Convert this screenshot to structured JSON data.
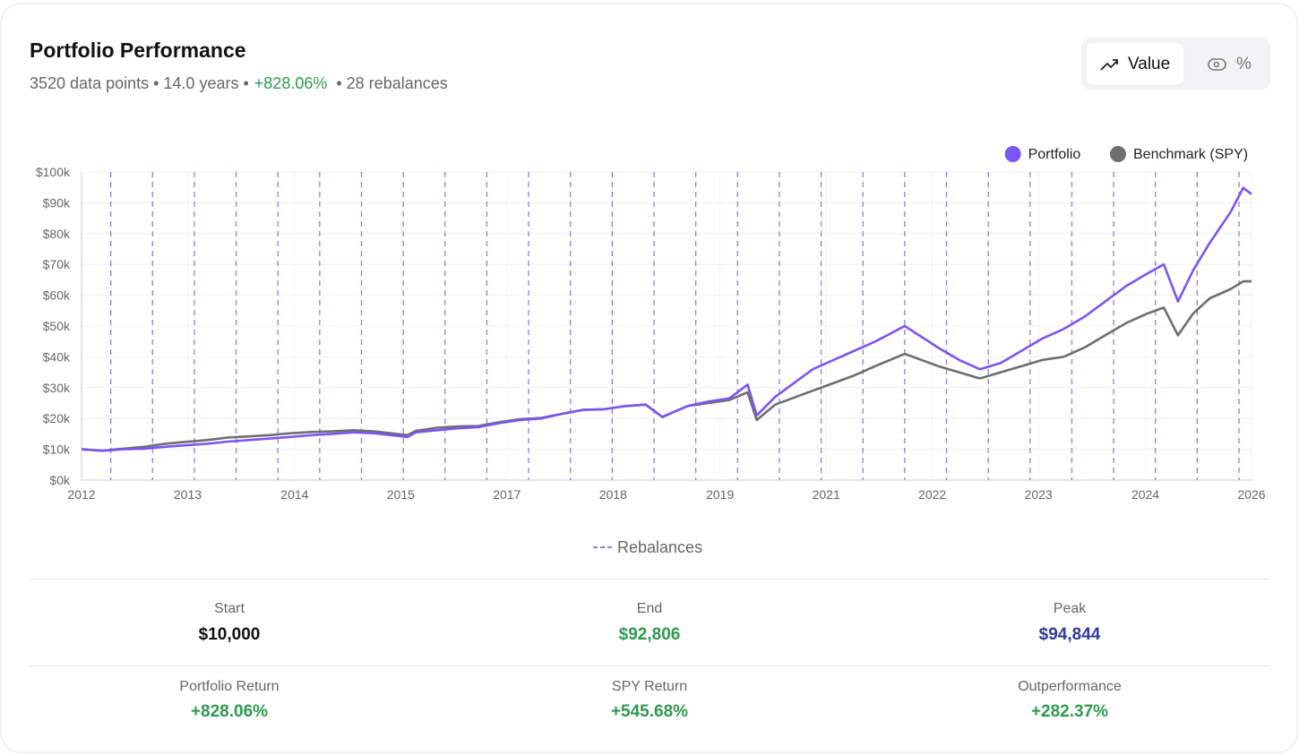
{
  "header": {
    "title": "Portfolio Performance",
    "subtitle": [
      "3520 data points • 14.0 years •",
      "+828.06%",
      "• 28 rebalances"
    ]
  },
  "toggle": {
    "options": [
      "Value",
      "%"
    ],
    "selected": 0
  },
  "chart_data": {
    "type": "line",
    "legend": "top-right",
    "grid": true,
    "x": [
      2012.0,
      2012.25,
      2012.5,
      2012.75,
      2013.0,
      2013.25,
      2013.5,
      2013.75,
      2014.0,
      2014.25,
      2014.5,
      2014.75,
      2015.0,
      2015.25,
      2015.5,
      2015.9,
      2016.0,
      2016.25,
      2016.5,
      2016.75,
      2017.0,
      2017.25,
      2017.5,
      2017.75,
      2018.0,
      2018.25,
      2018.5,
      2018.75,
      2018.95,
      2019.25,
      2019.5,
      2019.75,
      2019.97,
      2020.08,
      2020.3,
      2020.5,
      2020.75,
      2021.0,
      2021.25,
      2021.5,
      2021.85,
      2022.25,
      2022.5,
      2022.75,
      2023.0,
      2023.25,
      2023.5,
      2023.75,
      2024.0,
      2024.25,
      2024.5,
      2024.75,
      2024.95,
      2025.12,
      2025.3,
      2025.5,
      2025.75,
      2025.9,
      2026.0
    ],
    "series": [
      {
        "name": "Portfolio",
        "color": "#7b55f4",
        "values": [
          10000,
          9500,
          10000,
          10200,
          10800,
          11300,
          11800,
          12500,
          13000,
          13500,
          14000,
          14600,
          15000,
          15500,
          15200,
          14000,
          15500,
          16200,
          16800,
          17200,
          18500,
          19500,
          20000,
          21500,
          22800,
          23000,
          24000,
          24500,
          20500,
          24000,
          25500,
          26500,
          31000,
          21000,
          27000,
          31000,
          36000,
          39000,
          42000,
          45000,
          50000,
          43000,
          39000,
          36000,
          38000,
          42000,
          46000,
          49000,
          53000,
          58000,
          63000,
          67000,
          70000,
          58000,
          68000,
          77000,
          87000,
          94844,
          92806
        ]
      },
      {
        "name": "Benchmark (SPY)",
        "color": "#6e6e6e",
        "values": [
          10000,
          9600,
          10200,
          10800,
          11800,
          12400,
          13000,
          13800,
          14200,
          14600,
          15200,
          15600,
          15800,
          16200,
          15800,
          14600,
          16000,
          17000,
          17400,
          17600,
          18800,
          19800,
          20200,
          21500,
          22800,
          23000,
          24000,
          24500,
          20500,
          24000,
          25000,
          26000,
          28500,
          19500,
          24500,
          26500,
          29000,
          31500,
          34000,
          37000,
          41000,
          37000,
          35000,
          33000,
          35000,
          37000,
          39000,
          40000,
          43000,
          47000,
          51000,
          54000,
          56000,
          47000,
          54000,
          59000,
          62000,
          64500,
          64500
        ]
      }
    ],
    "xlim": [
      2012,
      2026
    ],
    "xticks": [
      {
        "value": 2012,
        "label": "2012"
      },
      {
        "value": 2013.27,
        "label": "2013"
      },
      {
        "value": 2014.55,
        "label": "2014"
      },
      {
        "value": 2015.82,
        "label": "2015"
      },
      {
        "value": 2017.09,
        "label": "2017"
      },
      {
        "value": 2018.36,
        "label": "2018"
      },
      {
        "value": 2019.64,
        "label": "2019"
      },
      {
        "value": 2020.91,
        "label": "2021"
      },
      {
        "value": 2022.18,
        "label": "2022"
      },
      {
        "value": 2023.45,
        "label": "2023"
      },
      {
        "value": 2024.73,
        "label": "2024"
      },
      {
        "value": 2026,
        "label": "2026"
      }
    ],
    "ylim": [
      0,
      100000
    ],
    "yticks": [
      {
        "value": 0,
        "label": "$0k"
      },
      {
        "value": 10000,
        "label": "$10k"
      },
      {
        "value": 20000,
        "label": "$20k"
      },
      {
        "value": 30000,
        "label": "$30k"
      },
      {
        "value": 40000,
        "label": "$40k"
      },
      {
        "value": 50000,
        "label": "$50k"
      },
      {
        "value": 60000,
        "label": "$60k"
      },
      {
        "value": 70000,
        "label": "$70k"
      },
      {
        "value": 80000,
        "label": "$80k"
      },
      {
        "value": 90000,
        "label": "$90k"
      },
      {
        "value": 100000,
        "label": "$100k"
      }
    ],
    "rebalances": [
      2012.35,
      2012.85,
      2013.35,
      2013.85,
      2014.35,
      2014.85,
      2015.35,
      2015.85,
      2016.35,
      2016.85,
      2017.35,
      2017.85,
      2018.35,
      2018.85,
      2019.35,
      2019.85,
      2020.35,
      2020.85,
      2021.35,
      2021.85,
      2022.35,
      2022.85,
      2023.35,
      2023.85,
      2024.35,
      2024.85,
      2025.35,
      2025.85
    ],
    "rebalances_label": "Rebalances",
    "rebalances_color": "#8b7fe8"
  },
  "stats": [
    [
      {
        "label": "Start",
        "value": "$10,000",
        "color": "#111111"
      },
      {
        "label": "End",
        "value": "$92,806",
        "color": "#2e9a4e"
      },
      {
        "label": "Peak",
        "value": "$94,844",
        "color": "#2f3a9e"
      }
    ],
    [
      {
        "label": "Portfolio Return",
        "value": "+828.06%",
        "color": "#2e9a4e"
      },
      {
        "label": "SPY Return",
        "value": "+545.68%",
        "color": "#2e9a4e"
      },
      {
        "label": "Outperformance",
        "value": "+282.37%",
        "color": "#2e9a4e"
      }
    ]
  ]
}
